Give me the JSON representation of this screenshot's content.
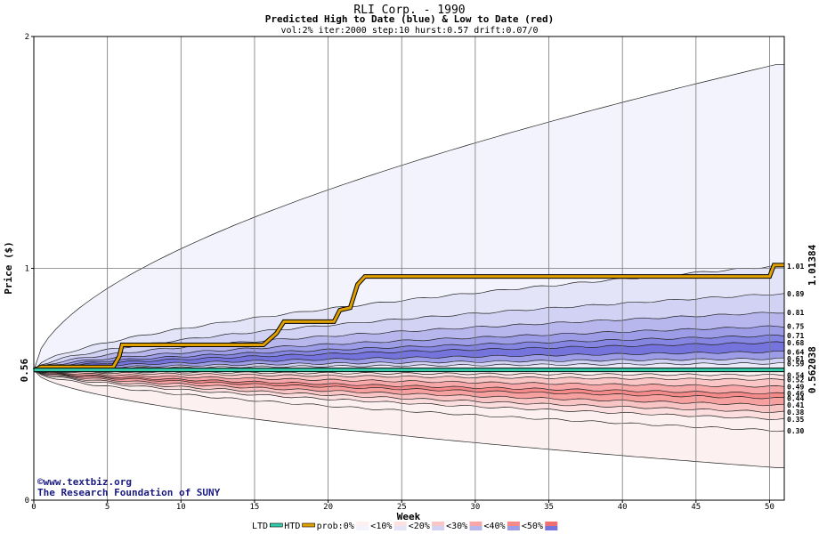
{
  "chart_data": {
    "type": "area",
    "title": "RLI Corp. - 1990",
    "subtitle": "Predicted High to Date (blue) &  Low to Date (red)",
    "params": "vol:2% iter:2000 step:10 hurst:0.57 drift:0.07/0",
    "xlabel": "Week",
    "ylabel": "Price ($)",
    "xlim": [
      0,
      51
    ],
    "ylim": [
      0,
      2
    ],
    "x_ticks": [
      0,
      5,
      10,
      15,
      20,
      25,
      30,
      35,
      40,
      45,
      50
    ],
    "y_ticks": [
      0,
      1,
      2
    ],
    "grid": true,
    "start_price": 0.56,
    "start_label": "0.56",
    "right_axis": [
      {
        "label": "1.01384",
        "value": 1.01384,
        "color": "#b07800"
      },
      {
        "label": "0.562038",
        "value": 0.562038,
        "color": "#00998a"
      }
    ],
    "level_labels": [
      "1.01",
      "0.89",
      "0.81",
      "0.75",
      "0.71",
      "0.68",
      "0.64",
      "0.61",
      "0.59",
      "0.54",
      "0.52",
      "0.49",
      "0.46",
      "0.44",
      "0.41",
      "0.38",
      "0.35",
      "0.30"
    ],
    "high_levels": [
      {
        "end": 1.88,
        "fill": "#f3f3fd"
      },
      {
        "end": 1.01,
        "fill": "#e4e4f8"
      },
      {
        "end": 0.89,
        "fill": "#d2d2f4"
      },
      {
        "end": 0.81,
        "fill": "#b7b7ee"
      },
      {
        "end": 0.75,
        "fill": "#9d9de7"
      },
      {
        "end": 0.71,
        "fill": "#8585e2"
      },
      {
        "end": 0.68,
        "fill": "#7474dc"
      },
      {
        "end": 0.64,
        "fill": "#9d9de7"
      },
      {
        "end": 0.61,
        "fill": "#d2d2f4"
      },
      {
        "end": 0.59,
        "fill": "#eaeaf9"
      }
    ],
    "low_levels": [
      {
        "end": 0.54,
        "fill": "#fff5f5"
      },
      {
        "end": 0.52,
        "fill": "#fde0e0"
      },
      {
        "end": 0.49,
        "fill": "#fbc6c6"
      },
      {
        "end": 0.46,
        "fill": "#f8a8a8"
      },
      {
        "end": 0.44,
        "fill": "#f48a8a"
      },
      {
        "end": 0.41,
        "fill": "#f6a0a0"
      },
      {
        "end": 0.38,
        "fill": "#f9c4c4"
      },
      {
        "end": 0.35,
        "fill": "#fcdede"
      },
      {
        "end": 0.3,
        "fill": "#fdf0f0"
      },
      {
        "end": 0.14,
        "fill": "#fdf0f0"
      }
    ],
    "series": [
      {
        "name": "HTD",
        "color": "#e0a000",
        "x": [
          0,
          0.5,
          1,
          5.4,
          5.8,
          6,
          15.6,
          16.5,
          17,
          20.4,
          20.8,
          21.5,
          22,
          22.5,
          50,
          50.3,
          51
        ],
        "y": [
          0.56,
          0.575,
          0.575,
          0.575,
          0.62,
          0.67,
          0.67,
          0.72,
          0.77,
          0.77,
          0.82,
          0.83,
          0.93,
          0.965,
          0.965,
          1.01384,
          1.01384
        ]
      },
      {
        "name": "LTD",
        "color": "#33ccaa",
        "x": [
          0,
          51
        ],
        "y": [
          0.562038,
          0.562038
        ]
      }
    ]
  },
  "credits": {
    "website": "www.textbiz.org",
    "org": "The Research Foundation of SUNY"
  },
  "legend": {
    "items": [
      {
        "label": "LTD",
        "kind": "line",
        "color": "#33ccaa"
      },
      {
        "label": "HTD",
        "kind": "line",
        "color": "#e0a000"
      },
      {
        "label": "prob:0%",
        "kind": "swatch",
        "colors": [
          "#fdf0f0",
          "#f3f3fd"
        ]
      },
      {
        "label": "<10%",
        "kind": "swatch",
        "colors": [
          "#fde0e0",
          "#e4e4f8"
        ]
      },
      {
        "label": "<20%",
        "kind": "swatch",
        "colors": [
          "#fbc6c6",
          "#d2d2f4"
        ]
      },
      {
        "label": "<30%",
        "kind": "swatch",
        "colors": [
          "#f8a8a8",
          "#b7b7ee"
        ]
      },
      {
        "label": "<40%",
        "kind": "swatch",
        "colors": [
          "#f48a8a",
          "#9d9de7"
        ]
      },
      {
        "label": "<50%",
        "kind": "swatch",
        "colors": [
          "#ee7070",
          "#7474dc"
        ]
      }
    ]
  }
}
